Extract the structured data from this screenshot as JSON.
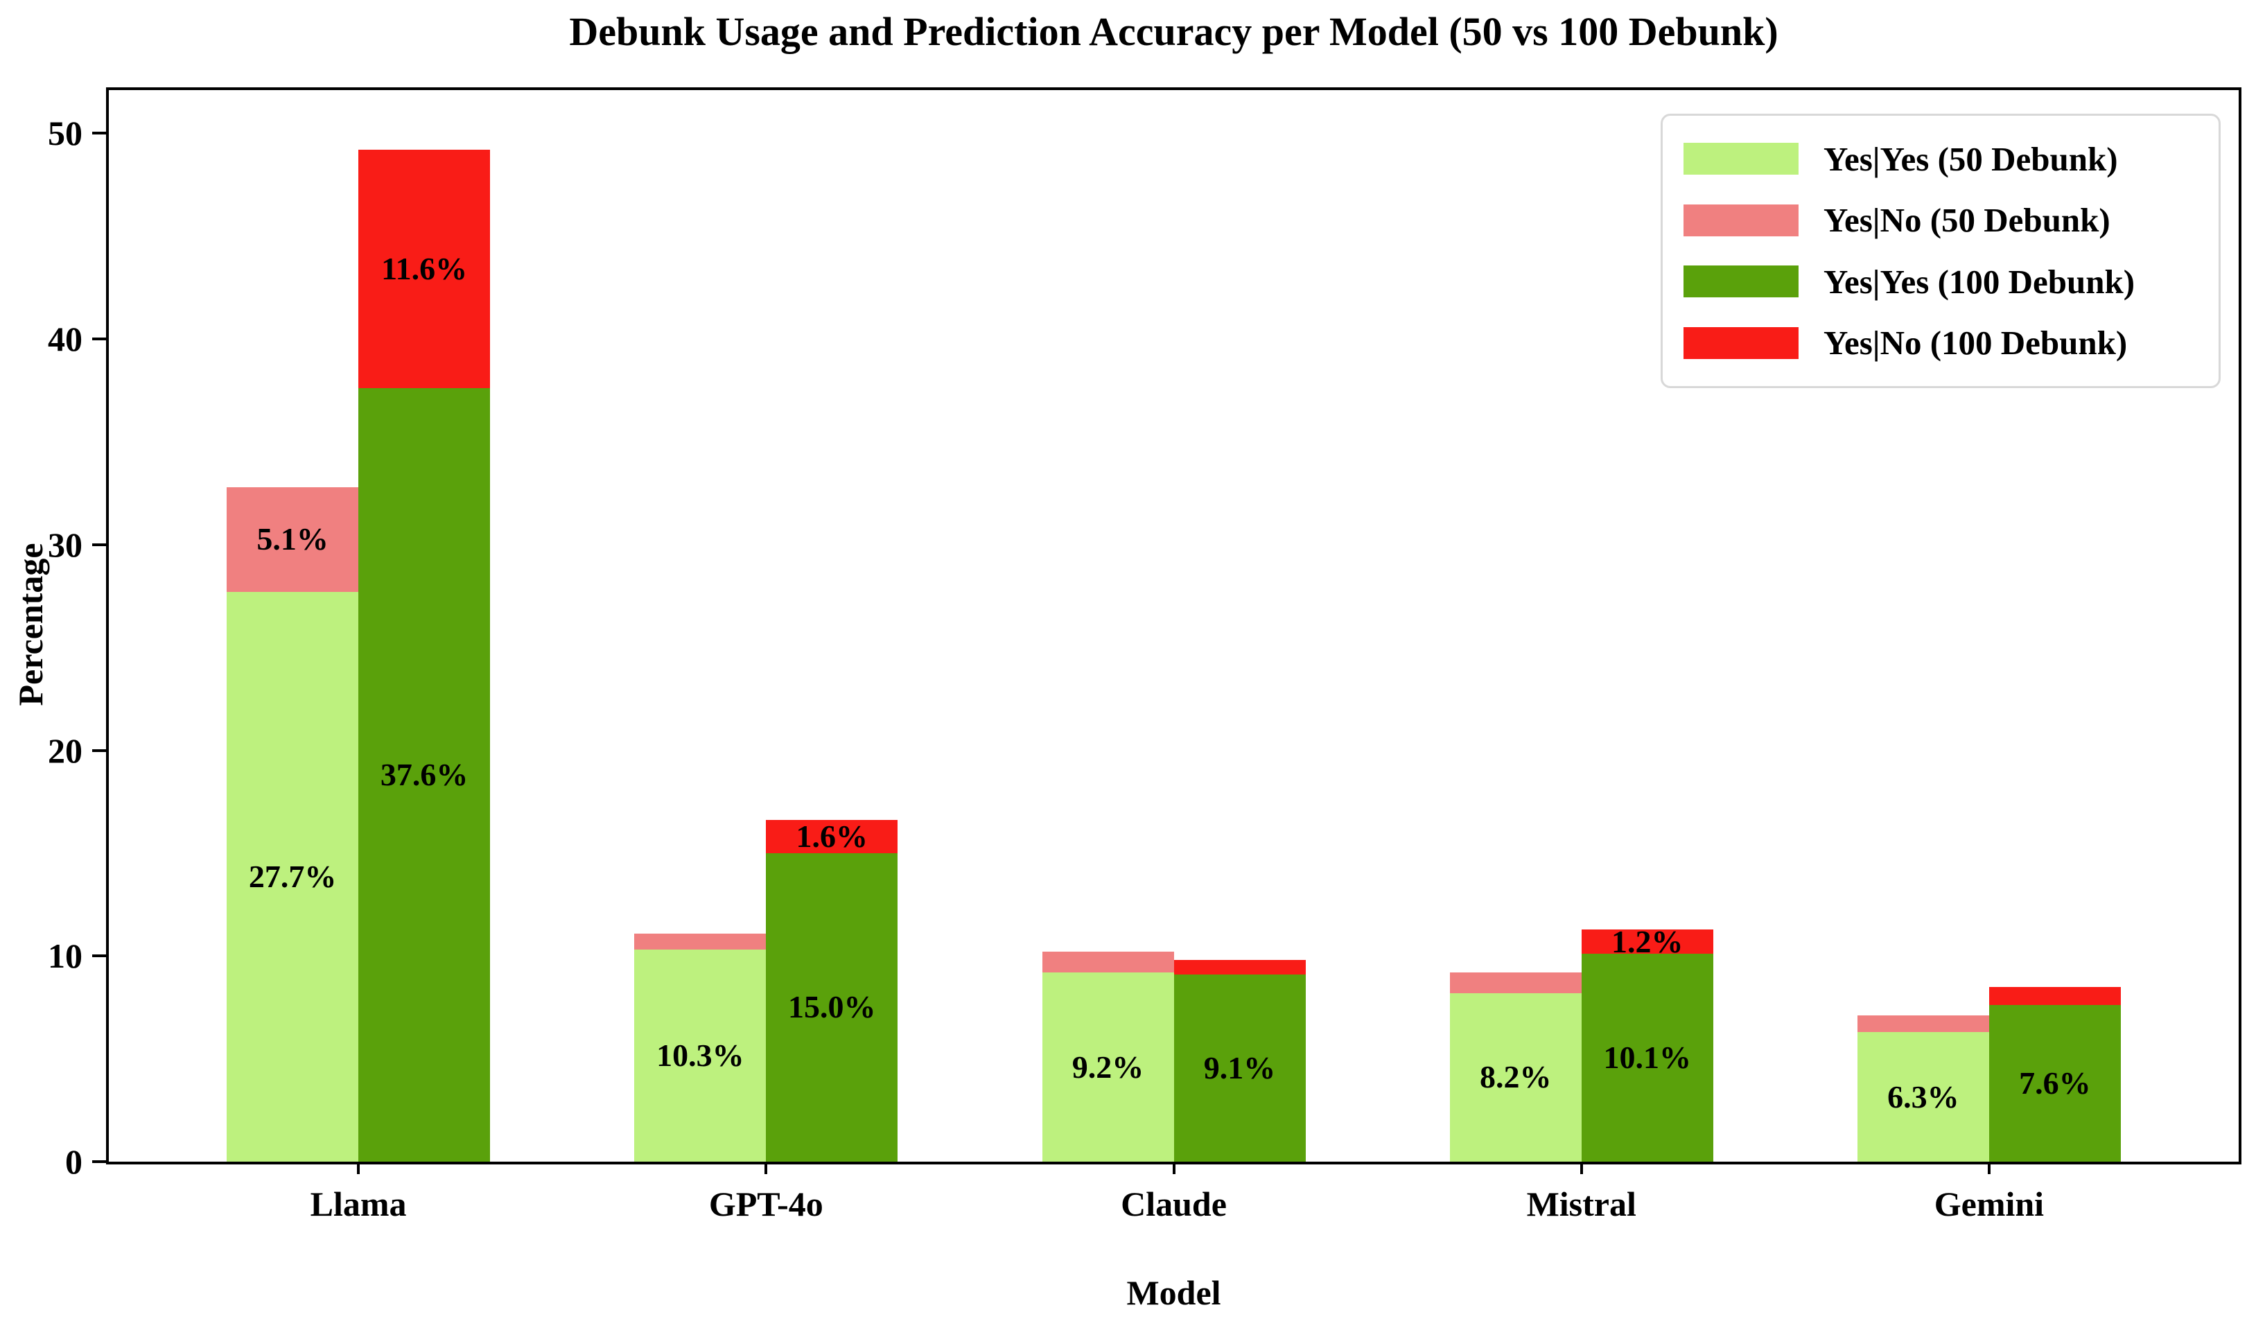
{
  "chart_data": {
    "type": "bar",
    "variant": "grouped-stacked",
    "title": "Debunk Usage and Prediction Accuracy per Model (50 vs 100 Debunk)",
    "xlabel": "Model",
    "ylabel": "Percentage",
    "categories": [
      "Llama",
      "GPT-4o",
      "Claude",
      "Mistral",
      "Gemini"
    ],
    "yticks": [
      0,
      10,
      20,
      30,
      40,
      50
    ],
    "ylim": [
      0,
      52.1
    ],
    "grid": false,
    "legend_position": "upper right",
    "groups": [
      {
        "id": "50-debunk",
        "segments": [
          {
            "series": "Yes|Yes (50 Debunk)",
            "color": "#bdf17e",
            "values": [
              27.7,
              10.3,
              9.2,
              8.2,
              6.3
            ],
            "labels": [
              "27.7%",
              "10.3%",
              "9.2%",
              "8.2%",
              "6.3%"
            ]
          },
          {
            "series": "Yes|No (50 Debunk)",
            "color": "#f08080",
            "values": [
              5.1,
              0.8,
              1.0,
              1.0,
              0.8
            ],
            "labels": [
              "5.1%",
              null,
              null,
              null,
              null
            ]
          }
        ]
      },
      {
        "id": "100-debunk",
        "segments": [
          {
            "series": "Yes|Yes (100 Debunk)",
            "color": "#5aa10b",
            "values": [
              37.6,
              15.0,
              9.1,
              10.1,
              7.6
            ],
            "labels": [
              "37.6%",
              "15.0%",
              "9.1%",
              "10.1%",
              "7.6%"
            ]
          },
          {
            "series": "Yes|No (100 Debunk)",
            "color": "#f91c17",
            "values": [
              11.6,
              1.6,
              0.7,
              1.2,
              0.9
            ],
            "labels": [
              "11.6%",
              "1.6%",
              null,
              "1.2%",
              null
            ]
          }
        ]
      }
    ],
    "legend_entries": [
      "Yes|Yes (50 Debunk)",
      "Yes|No (50 Debunk)",
      "Yes|Yes (100 Debunk)",
      "Yes|No (100 Debunk)"
    ]
  },
  "style": {
    "axis_color": "#000000",
    "background": "#ffffff",
    "legend_border": "#d8d8d8",
    "text_color": "#000000"
  }
}
